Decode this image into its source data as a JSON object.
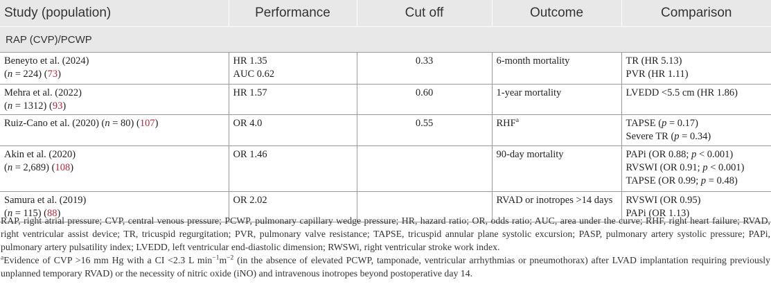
{
  "header": {
    "study": "Study (population)",
    "performance": "Performance",
    "cutoff": "Cut off",
    "outcome": "Outcome",
    "comparison": "Comparison"
  },
  "section": "RAP (CVP)/PCWP",
  "rows": [
    {
      "study_line1": "Beneyto et al. (2024)",
      "study_line2_prefix": "(",
      "study_n": "n",
      "study_line2_mid": " = 224) (",
      "study_ref": "73",
      "study_line2_suffix": ")",
      "perf1": "HR 1.35",
      "perf2": "AUC 0.62",
      "cutoff": "0.33",
      "outcome": "6-month mortality",
      "comp1": "TR (HR 5.13)",
      "comp2": "PVR (HR 1.11)"
    },
    {
      "study_line1": "Mehra et al. (2022)",
      "study_line2_prefix": "(",
      "study_n": "n",
      "study_line2_mid": " = 1312) (",
      "study_ref": "93",
      "study_line2_suffix": ")",
      "perf1": "HR 1.57",
      "cutoff": "0.60",
      "outcome": "1-year mortality",
      "comp1": "LVEDD <5.5 cm (HR 1.86)"
    },
    {
      "study_line1_prefix": "Ruiz-Cano et al. (2020) (",
      "study_n": "n",
      "study_line1_mid": " = 80) (",
      "study_ref": "107",
      "study_line1_suffix": ")",
      "perf1": "OR 4.0",
      "cutoff": "0.55",
      "outcome": "RHF",
      "outcome_sup": "a",
      "comp1_prefix": "TAPSE (",
      "comp1_p": "p",
      "comp1_suffix": " = 0.17)",
      "comp2_prefix": "Severe TR (",
      "comp2_p": "p",
      "comp2_suffix": " = 0.34)"
    },
    {
      "study_line1": "Akin et al. (2020)",
      "study_line2_prefix": "(",
      "study_n": "n",
      "study_line2_mid": " = 2,689) (",
      "study_ref": "108",
      "study_line2_suffix": ")",
      "perf1": "OR 1.46",
      "cutoff": "",
      "outcome": "90-day mortality",
      "comp1_prefix": "PAPi (OR 0.88; ",
      "comp1_p": "p",
      "comp1_suffix": " < 0.001)",
      "comp2_prefix": "RVSWI (OR 0.91; ",
      "comp2_p": "p",
      "comp2_suffix": " < 0.001)",
      "comp3_prefix": "TAPSE (OR 0.99; ",
      "comp3_p": "p",
      "comp3_suffix": " = 0.48)"
    },
    {
      "study_line1": "Samura et al. (2019)",
      "study_line2_prefix": "(",
      "study_n": "n",
      "study_line2_mid": " = 115) (",
      "study_ref": "88",
      "study_line2_suffix": ")",
      "perf1": "OR 2.02",
      "cutoff": "",
      "outcome": "RVAD or inotropes >14 days",
      "comp1": "RVSWI (OR 0.95)",
      "comp2": "PAPi (OR 1.13)"
    }
  ],
  "footnote_abbrev": "RAP, right atrial pressure; CVP, central venous pressure; PCWP, pulmonary capillary wedge pressure; HR, hazard ratio; OR, odds ratio; AUC, area under the curve; RHF, right heart failure; RVAD, right ventricular assist device; TR, tricuspid regurgitation; PVR, pulmonary valve resistance; TAPSE, tricuspid annular plane systolic excursion; PASP, pulmonary artery systolic pressure; PAPi, pulmonary artery pulsatility index; LVEDD, left ventricular end-diastolic dimension; RWSWi, right ventricular stroke work index.",
  "footnote_a": {
    "marker": "a",
    "part1": "Evidence of CVP >16 mm Hg with a CI <2.3 L min",
    "sup1": "−1",
    "part2": "m",
    "sup2": "−2",
    "part3": " (in the absence of elevated PCWP, tamponade, ventricular arrhythmias or pneumothorax) after LVAD implantation requiring previously unplanned temporary RVAD) or the necessity of nitric oxide (iNO) and intravenous inotropes beyond postoperative day 14."
  }
}
